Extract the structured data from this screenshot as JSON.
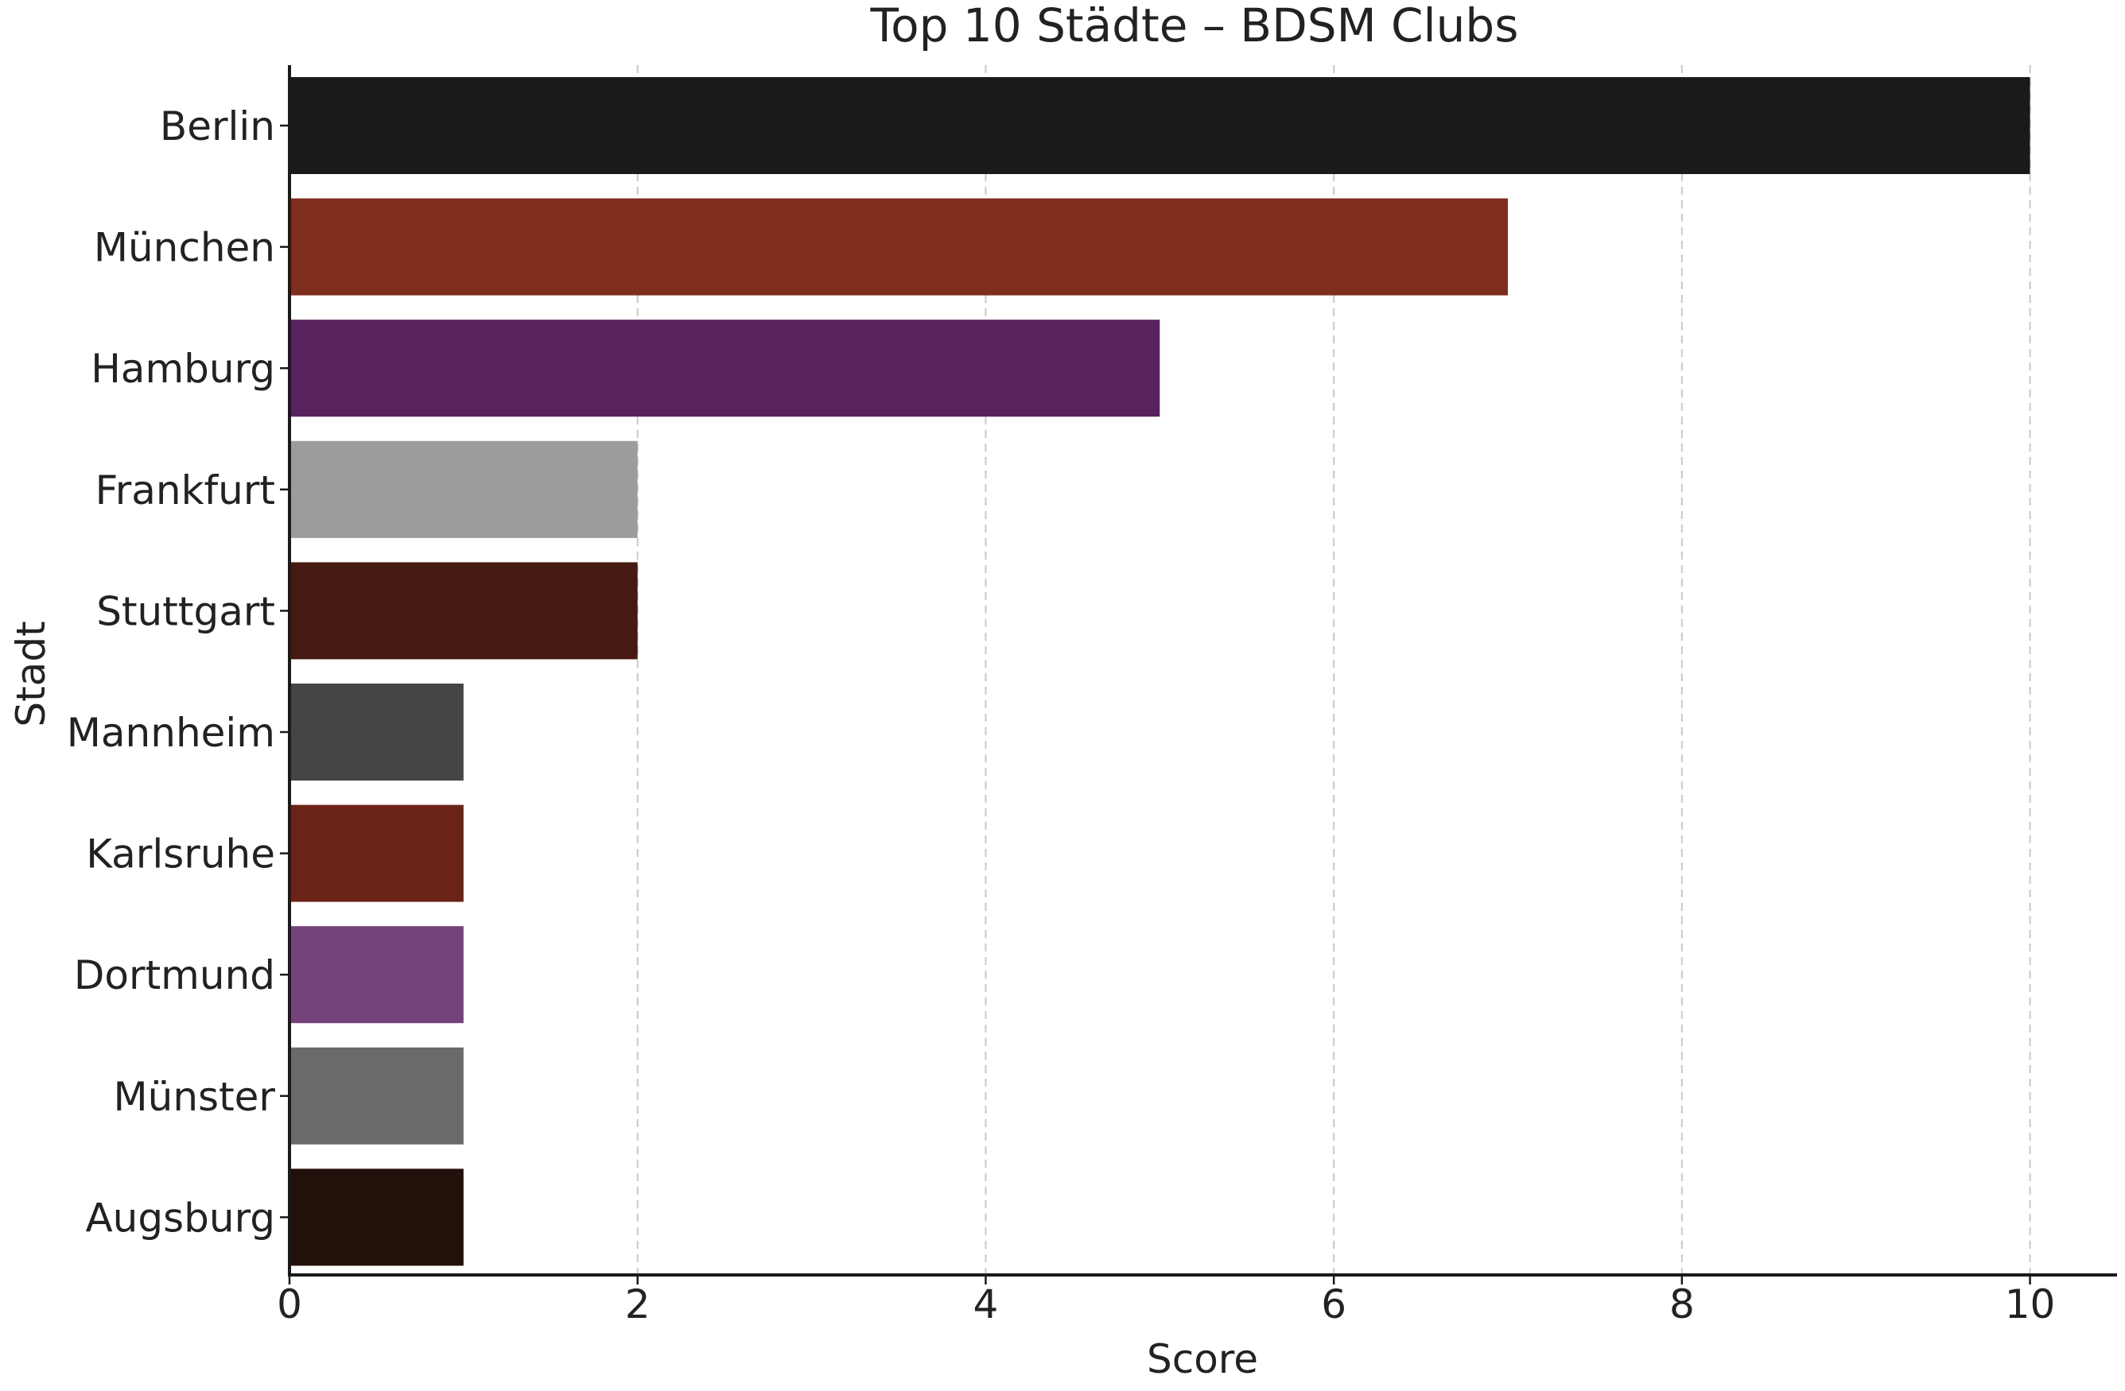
{
  "chart_data": {
    "type": "bar",
    "orientation": "horizontal",
    "title": "Top 10 Städte – BDSM Clubs",
    "xlabel": "Score",
    "ylabel": "Stadt",
    "categories": [
      "Berlin",
      "München",
      "Hamburg",
      "Frankfurt",
      "Stuttgart",
      "Mannheim",
      "Karlsruhe",
      "Dortmund",
      "Münster",
      "Augsburg"
    ],
    "values": [
      10,
      7,
      5,
      2,
      2,
      1,
      1,
      1,
      1,
      1
    ],
    "colors": [
      "#1a1a1a",
      "#7f2d1d",
      "#5a215f",
      "#9c9c9c",
      "#461a13",
      "#454545",
      "#6b2317",
      "#74427a",
      "#6a6a6a",
      "#22100a"
    ],
    "xlim": [
      0,
      10.5
    ],
    "xticks": [
      0,
      2,
      4,
      6,
      8,
      10
    ],
    "grid": "vertical dashed",
    "legend": "none"
  }
}
